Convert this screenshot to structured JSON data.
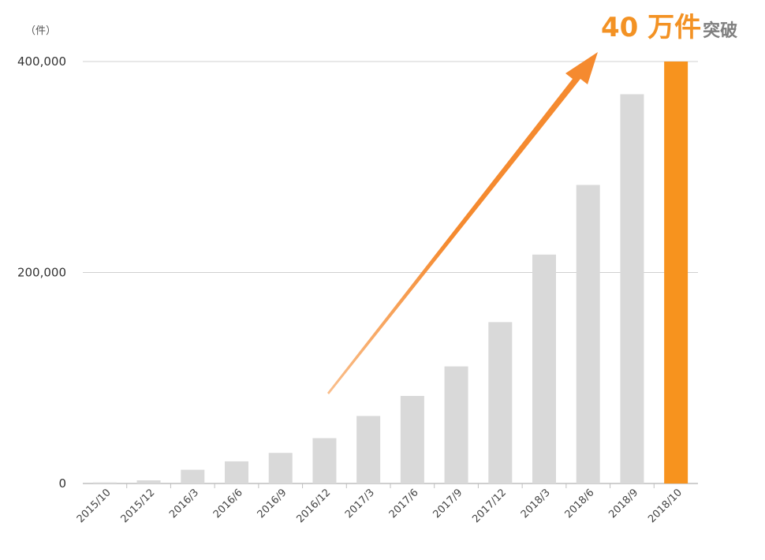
{
  "chart_data": {
    "type": "bar",
    "unit_label": "（件）",
    "categories": [
      "2015/10",
      "2015/12",
      "2016/3",
      "2016/6",
      "2016/9",
      "2016/12",
      "2017/3",
      "2017/6",
      "2017/9",
      "2017/12",
      "2018/3",
      "2018/6",
      "2018/9",
      "2018/10"
    ],
    "values": [
      1000,
      3000,
      13000,
      21000,
      29000,
      43000,
      64000,
      83000,
      111000,
      153000,
      217000,
      283000,
      369000,
      400000
    ],
    "highlight_index": 13,
    "ylim": [
      0,
      400000
    ],
    "yticks": [
      0,
      200000,
      400000
    ],
    "ytick_labels": [
      "0",
      "200,000",
      "400,000"
    ],
    "grid": true,
    "colors": {
      "bar": "#d9d9d9",
      "highlight": "#f7931e",
      "arrow": "#f58a2f",
      "grid": "#d0d0d0",
      "axis": "#bfbfbf"
    },
    "annotation": {
      "number": "40 万件",
      "suffix": "突破"
    }
  }
}
